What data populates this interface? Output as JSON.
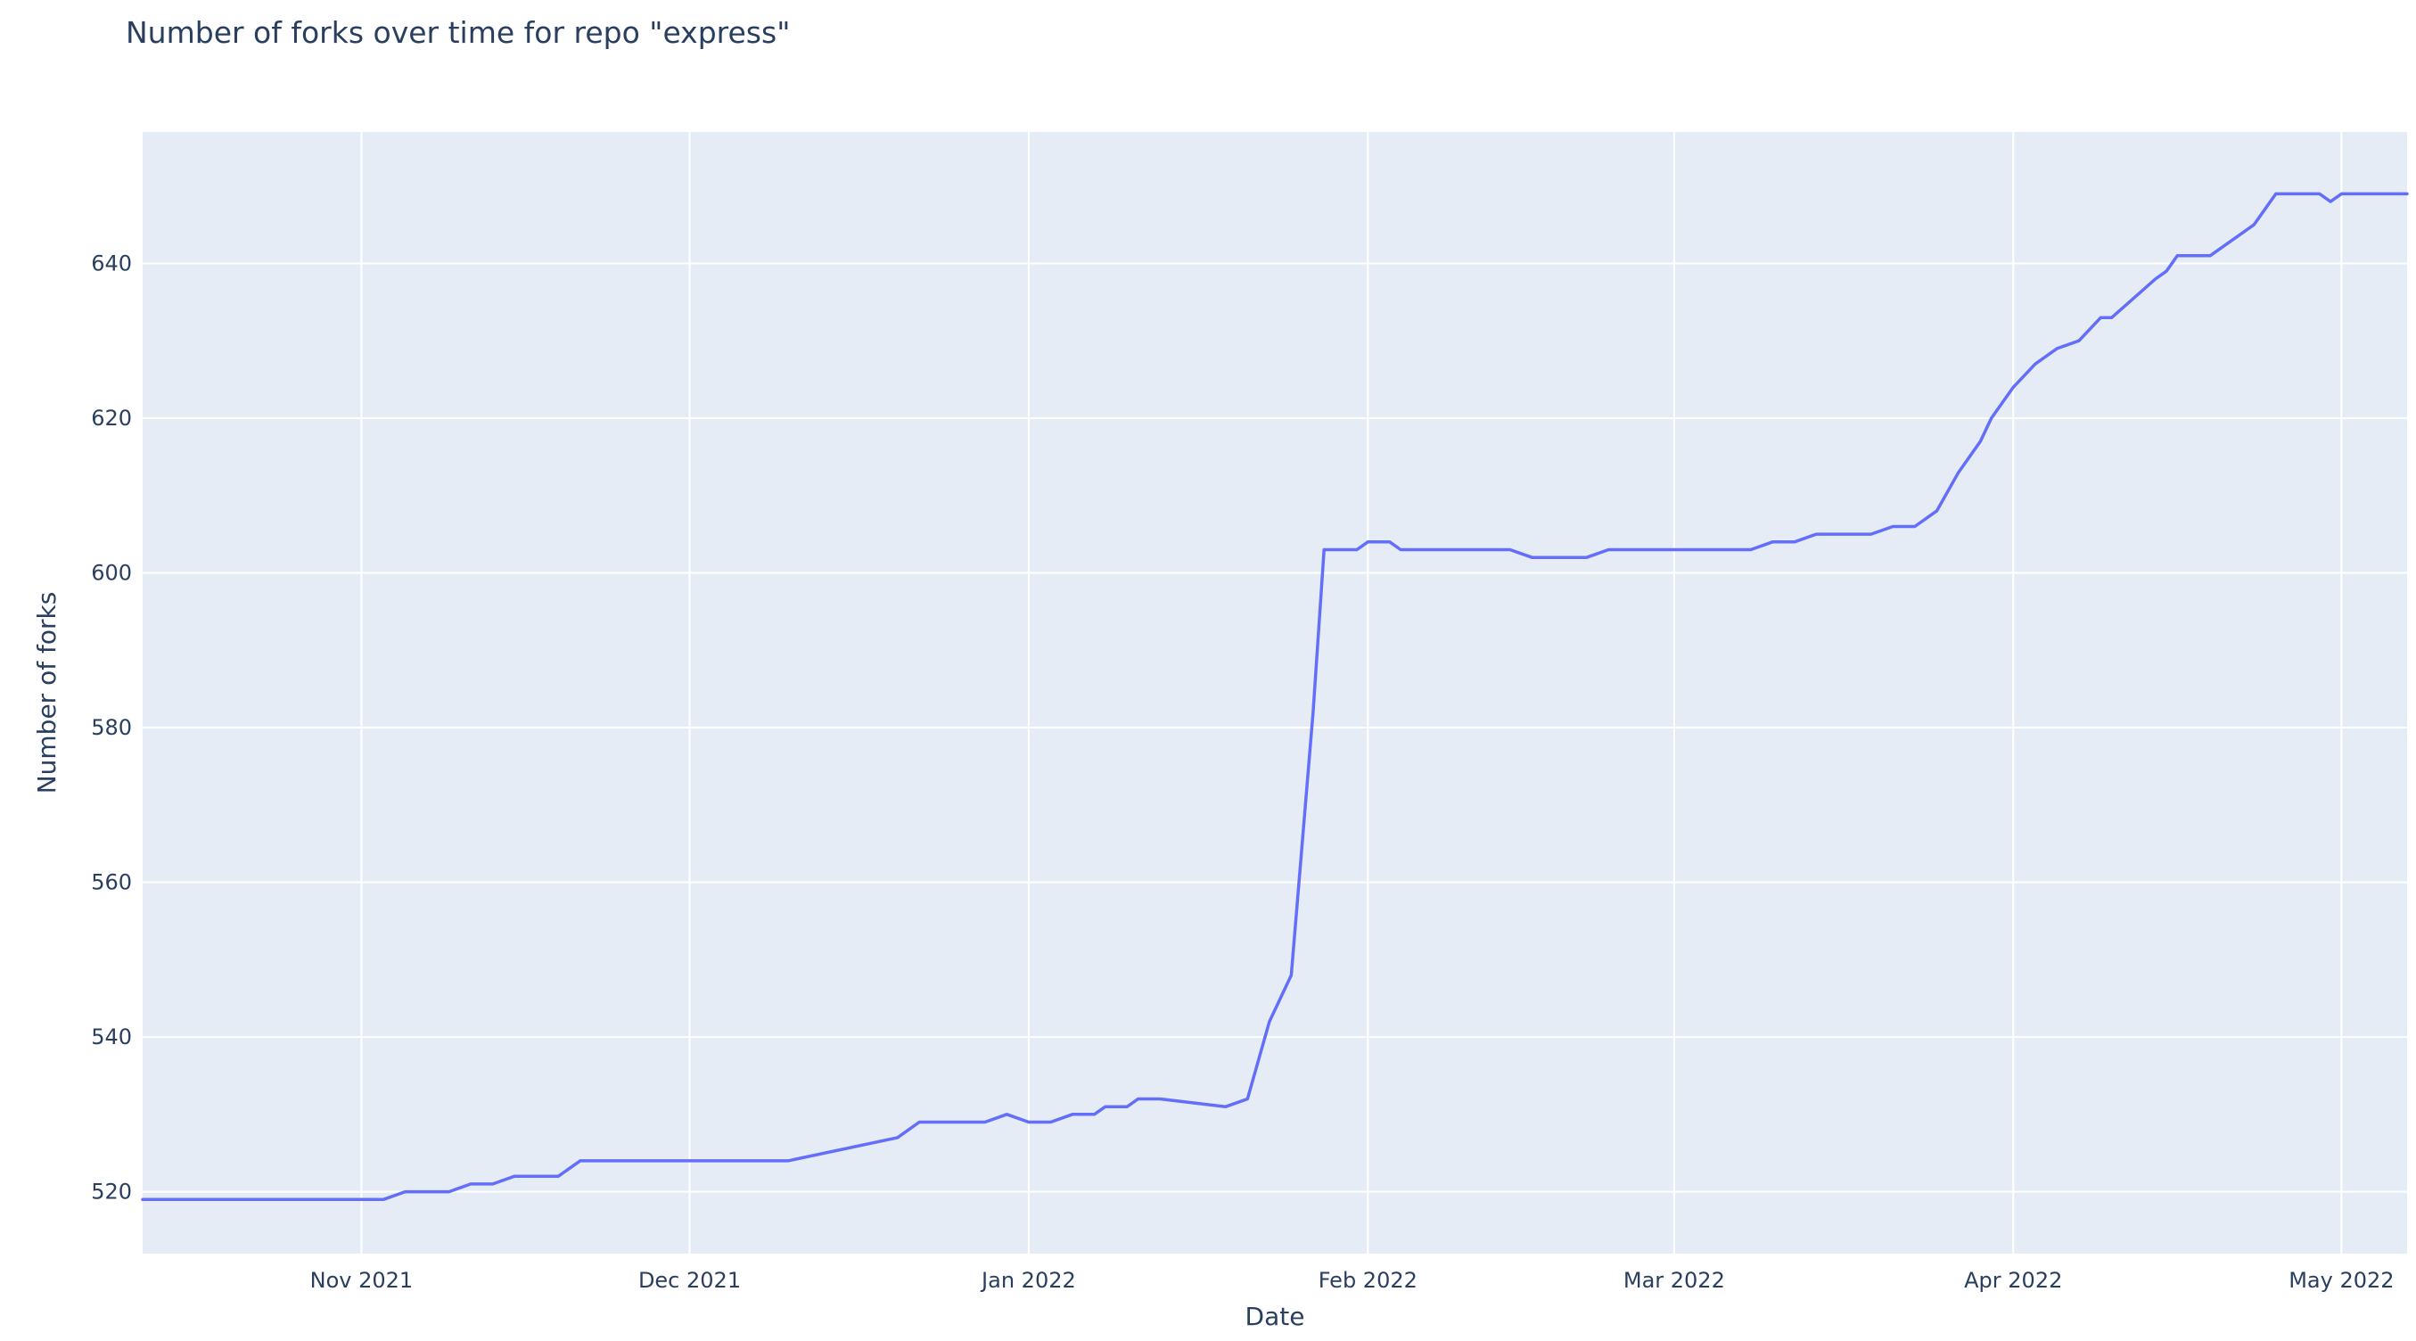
{
  "chart_data": {
    "type": "line",
    "title": "Number of forks over time for repo \"express\"",
    "xlabel": "Date",
    "ylabel": "Number of forks",
    "xlim": [
      "2021-10-12",
      "2022-05-07"
    ],
    "ylim": [
      512,
      657
    ],
    "grid": true,
    "legend": "none",
    "colors": {
      "line": "#636efa",
      "plot_bg": "#e5ecf6",
      "grid": "#ffffff",
      "text": "#2a3f5f"
    },
    "x_ticks": [
      {
        "date": "2021-11-01",
        "label": "Nov 2021"
      },
      {
        "date": "2021-12-01",
        "label": "Dec 2021"
      },
      {
        "date": "2022-01-01",
        "label": "Jan 2022"
      },
      {
        "date": "2022-02-01",
        "label": "Feb 2022"
      },
      {
        "date": "2022-03-01",
        "label": "Mar 2022"
      },
      {
        "date": "2022-04-01",
        "label": "Apr 2022"
      },
      {
        "date": "2022-05-01",
        "label": "May 2022"
      }
    ],
    "y_ticks": [
      520,
      540,
      560,
      580,
      600,
      620,
      640
    ],
    "series": [
      {
        "x": [
          "2021-10-12",
          "2021-10-20",
          "2021-11-01",
          "2021-11-03",
          "2021-11-05",
          "2021-11-09",
          "2021-11-11",
          "2021-11-13",
          "2021-11-15",
          "2021-11-19",
          "2021-11-21",
          "2021-12-01",
          "2021-12-10",
          "2021-12-20",
          "2021-12-22",
          "2021-12-28",
          "2021-12-30",
          "2022-01-01",
          "2022-01-03",
          "2022-01-05",
          "2022-01-07",
          "2022-01-08",
          "2022-01-10",
          "2022-01-11",
          "2022-01-13",
          "2022-01-19",
          "2022-01-21",
          "2022-01-23",
          "2022-01-25",
          "2022-01-27",
          "2022-01-28",
          "2022-01-29",
          "2022-01-31",
          "2022-02-01",
          "2022-02-03",
          "2022-02-04",
          "2022-02-14",
          "2022-02-16",
          "2022-02-21",
          "2022-02-23",
          "2022-03-08",
          "2022-03-10",
          "2022-03-12",
          "2022-03-14",
          "2022-03-19",
          "2022-03-21",
          "2022-03-23",
          "2022-03-25",
          "2022-03-27",
          "2022-03-29",
          "2022-03-30",
          "2022-04-01",
          "2022-04-03",
          "2022-04-05",
          "2022-04-07",
          "2022-04-09",
          "2022-04-10",
          "2022-04-14",
          "2022-04-15",
          "2022-04-16",
          "2022-04-19",
          "2022-04-23",
          "2022-04-25",
          "2022-04-29",
          "2022-04-30",
          "2022-05-01",
          "2022-05-05",
          "2022-05-07"
        ],
        "y": [
          519,
          519,
          519,
          519,
          520,
          520,
          521,
          521,
          522,
          522,
          524,
          524,
          524,
          527,
          529,
          529,
          530,
          529,
          529,
          530,
          530,
          531,
          531,
          532,
          532,
          531,
          532,
          542,
          548,
          582,
          603,
          603,
          603,
          604,
          604,
          603,
          603,
          602,
          602,
          603,
          603,
          604,
          604,
          605,
          605,
          606,
          606,
          608,
          613,
          617,
          620,
          624,
          627,
          629,
          630,
          633,
          633,
          638,
          639,
          641,
          641,
          645,
          649,
          649,
          648,
          649,
          649,
          649
        ]
      }
    ]
  }
}
